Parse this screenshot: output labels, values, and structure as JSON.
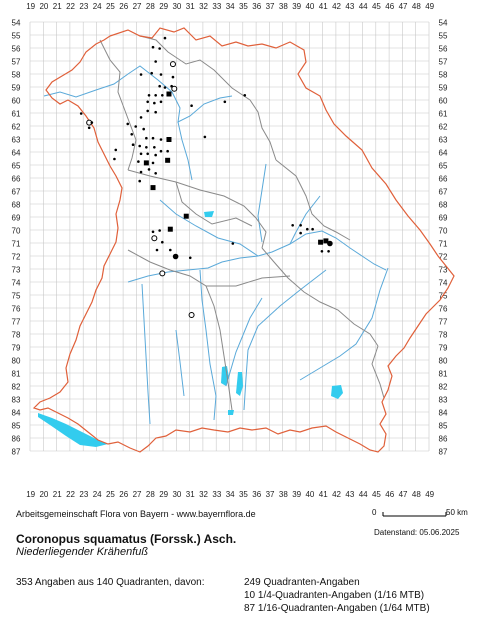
{
  "map": {
    "x_labels": [
      "19",
      "20",
      "21",
      "22",
      "23",
      "24",
      "25",
      "26",
      "27",
      "28",
      "29",
      "30",
      "31",
      "32",
      "33",
      "34",
      "35",
      "36",
      "37",
      "38",
      "39",
      "40",
      "41",
      "42",
      "43",
      "44",
      "45",
      "46",
      "47",
      "48",
      "49"
    ],
    "y_labels": [
      "54",
      "55",
      "56",
      "57",
      "58",
      "59",
      "60",
      "61",
      "62",
      "63",
      "64",
      "65",
      "66",
      "67",
      "68",
      "69",
      "70",
      "71",
      "72",
      "73",
      "74",
      "75",
      "76",
      "77",
      "78",
      "79",
      "80",
      "81",
      "82",
      "83",
      "84",
      "85",
      "86",
      "87"
    ],
    "colors": {
      "grid": "#c8c8c8",
      "border": "#e0603a",
      "district": "#8a8a8a",
      "river": "#5aa9d9",
      "lake": "#33ccee",
      "marker": "#000000"
    }
  },
  "occurrences": [
    {
      "col": 29.1,
      "row": 55.2,
      "s": "sm"
    },
    {
      "col": 28.2,
      "row": 55.9,
      "s": "sm"
    },
    {
      "col": 28.7,
      "row": 56.0,
      "s": "sm"
    },
    {
      "col": 28.4,
      "row": 57.0,
      "s": "sm"
    },
    {
      "col": 29.7,
      "row": 57.2,
      "s": "open"
    },
    {
      "col": 28.1,
      "row": 57.9,
      "s": "sm"
    },
    {
      "col": 28.8,
      "row": 58.0,
      "s": "sm"
    },
    {
      "col": 27.3,
      "row": 58.0,
      "s": "sm"
    },
    {
      "col": 29.7,
      "row": 58.2,
      "s": "sm"
    },
    {
      "col": 28.7,
      "row": 58.9,
      "s": "sm"
    },
    {
      "col": 29.6,
      "row": 58.9,
      "s": "sm"
    },
    {
      "col": 29.8,
      "row": 59.1,
      "s": "open"
    },
    {
      "col": 29.1,
      "row": 59.0,
      "s": "sm"
    },
    {
      "col": 27.9,
      "row": 59.6,
      "s": "sm"
    },
    {
      "col": 28.4,
      "row": 59.6,
      "s": "sm"
    },
    {
      "col": 28.9,
      "row": 59.6,
      "s": "sm"
    },
    {
      "col": 29.4,
      "row": 59.5,
      "s": "sq"
    },
    {
      "col": 27.8,
      "row": 60.1,
      "s": "sm"
    },
    {
      "col": 28.3,
      "row": 60.2,
      "s": "sm"
    },
    {
      "col": 28.8,
      "row": 60.1,
      "s": "sm"
    },
    {
      "col": 31.1,
      "row": 60.4,
      "s": "sm"
    },
    {
      "col": 27.8,
      "row": 60.8,
      "s": "sm"
    },
    {
      "col": 28.4,
      "row": 60.9,
      "s": "sm"
    },
    {
      "col": 27.3,
      "row": 61.3,
      "s": "sm"
    },
    {
      "col": 23.4,
      "row": 61.7,
      "s": "open"
    },
    {
      "col": 23.6,
      "row": 61.7,
      "s": "sm"
    },
    {
      "col": 26.3,
      "row": 61.8,
      "s": "sm"
    },
    {
      "col": 26.9,
      "row": 62.0,
      "s": "sm"
    },
    {
      "col": 27.5,
      "row": 62.2,
      "s": "sm"
    },
    {
      "col": 26.6,
      "row": 62.6,
      "s": "sm"
    },
    {
      "col": 27.7,
      "row": 62.9,
      "s": "sm"
    },
    {
      "col": 28.2,
      "row": 62.9,
      "s": "sm"
    },
    {
      "col": 28.8,
      "row": 63.0,
      "s": "sm"
    },
    {
      "col": 29.4,
      "row": 63.0,
      "s": "sq"
    },
    {
      "col": 26.7,
      "row": 63.4,
      "s": "sm"
    },
    {
      "col": 27.2,
      "row": 63.5,
      "s": "sm"
    },
    {
      "col": 27.7,
      "row": 63.6,
      "s": "sm"
    },
    {
      "col": 28.3,
      "row": 63.6,
      "s": "sm"
    },
    {
      "col": 28.8,
      "row": 63.9,
      "s": "sm"
    },
    {
      "col": 29.3,
      "row": 63.9,
      "s": "sm"
    },
    {
      "col": 27.3,
      "row": 64.1,
      "s": "sm"
    },
    {
      "col": 27.8,
      "row": 64.1,
      "s": "sm"
    },
    {
      "col": 28.4,
      "row": 64.2,
      "s": "sm"
    },
    {
      "col": 29.3,
      "row": 64.6,
      "s": "sq"
    },
    {
      "col": 25.3,
      "row": 64.5,
      "s": "sm"
    },
    {
      "col": 27.1,
      "row": 64.7,
      "s": "sm"
    },
    {
      "col": 27.7,
      "row": 64.8,
      "s": "sq"
    },
    {
      "col": 28.2,
      "row": 64.8,
      "s": "sm"
    },
    {
      "col": 27.9,
      "row": 65.3,
      "s": "sm"
    },
    {
      "col": 27.3,
      "row": 65.5,
      "s": "sm"
    },
    {
      "col": 28.4,
      "row": 65.6,
      "s": "sm"
    },
    {
      "col": 28.2,
      "row": 66.7,
      "s": "sq"
    },
    {
      "col": 30.7,
      "row": 68.9,
      "s": "sq"
    },
    {
      "col": 29.5,
      "row": 69.9,
      "s": "sq"
    },
    {
      "col": 28.7,
      "row": 70.0,
      "s": "sm"
    },
    {
      "col": 28.2,
      "row": 70.1,
      "s": "sm"
    },
    {
      "col": 28.3,
      "row": 70.6,
      "s": "open"
    },
    {
      "col": 28.9,
      "row": 70.9,
      "s": "sm"
    },
    {
      "col": 28.5,
      "row": 71.5,
      "s": "sm"
    },
    {
      "col": 29.5,
      "row": 71.5,
      "s": "sm"
    },
    {
      "col": 29.9,
      "row": 72.0,
      "s": "big"
    },
    {
      "col": 31.0,
      "row": 72.1,
      "s": "sm"
    },
    {
      "col": 28.9,
      "row": 73.3,
      "s": "open"
    },
    {
      "col": 38.7,
      "row": 69.6,
      "s": "sm"
    },
    {
      "col": 39.3,
      "row": 69.6,
      "s": "sm"
    },
    {
      "col": 39.8,
      "row": 69.9,
      "s": "sm"
    },
    {
      "col": 40.2,
      "row": 69.9,
      "s": "sm"
    },
    {
      "col": 39.3,
      "row": 70.2,
      "s": "sm"
    },
    {
      "col": 40.8,
      "row": 70.9,
      "s": "sq"
    },
    {
      "col": 41.2,
      "row": 70.8,
      "s": "sq"
    },
    {
      "col": 41.5,
      "row": 71.0,
      "s": "big"
    },
    {
      "col": 40.9,
      "row": 71.6,
      "s": "sm"
    },
    {
      "col": 41.4,
      "row": 71.6,
      "s": "sm"
    },
    {
      "col": 31.1,
      "row": 76.5,
      "s": "open"
    },
    {
      "col": 34.2,
      "row": 71.0,
      "s": "sm"
    },
    {
      "col": 22.8,
      "row": 61.0,
      "s": "sm"
    },
    {
      "col": 23.4,
      "row": 62.1,
      "s": "sm"
    },
    {
      "col": 25.4,
      "row": 63.8,
      "s": "sm"
    },
    {
      "col": 27.2,
      "row": 66.2,
      "s": "sm"
    },
    {
      "col": 32.1,
      "row": 62.8,
      "s": "sm"
    },
    {
      "col": 33.6,
      "row": 60.1,
      "s": "sm"
    },
    {
      "col": 35.1,
      "row": 59.6,
      "s": "sm"
    }
  ],
  "footer": {
    "credit": "Arbeitsgemeinschaft Flora von Bayern - www.bayernflora.de",
    "scale_start": "0",
    "scale_end": "50 km",
    "date": "Datenstand: 05.06.2025",
    "scientific_name": "Coronopus squamatus (Forssk.) Asch.",
    "common_name": "Niederliegender Krähenfuß",
    "summary": "353 Angaben aus 140 Quadranten, davon:",
    "counts": [
      "249 Quadranten-Angaben",
      "10 1/4-Quadranten-Angaben (1/16 MTB)",
      "87 1/16-Quadranten-Angaben (1/64 MTB)"
    ]
  }
}
